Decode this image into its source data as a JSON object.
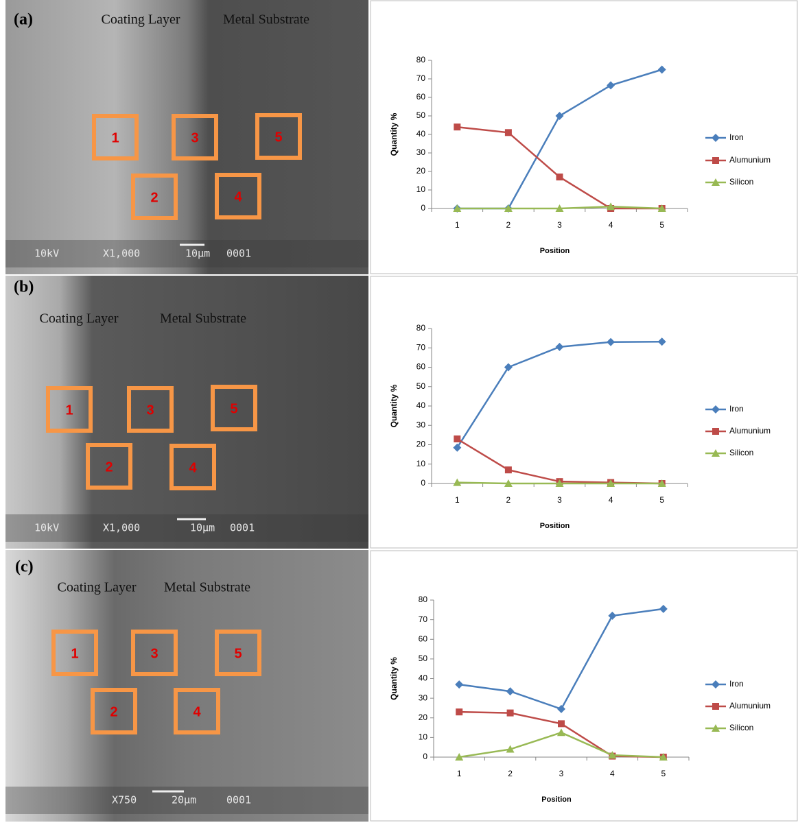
{
  "panels": [
    {
      "label": "(a)",
      "coating": "Coating Layer",
      "substrate": "Metal Substrate",
      "boxes": [
        "1",
        "2",
        "3",
        "4",
        "5"
      ],
      "info": [
        "10kV",
        "X1,000",
        "10μm",
        "0001"
      ]
    },
    {
      "label": "(b)",
      "coating": "Coating Layer",
      "substrate": "Metal Substrate",
      "boxes": [
        "1",
        "2",
        "3",
        "4",
        "5"
      ],
      "info": [
        "10kV",
        "X1,000",
        "10μm",
        "0001"
      ]
    },
    {
      "label": "(c)",
      "coating": "Coating Layer",
      "substrate": "Metal Substrate",
      "boxes": [
        "1",
        "2",
        "3",
        "4",
        "5"
      ],
      "info": [
        "X750",
        "20μm",
        "0001"
      ]
    }
  ],
  "chart_data": [
    {
      "type": "line",
      "y_label": "Quantity %",
      "x_label": "Position",
      "categories": [
        "1",
        "2",
        "3",
        "4",
        "5"
      ],
      "series": [
        {
          "name": "Iron",
          "color": "#4a7ebb",
          "marker": "diamond",
          "values": [
            0,
            0,
            50,
            66.5,
            75
          ]
        },
        {
          "name": "Alumunium",
          "color": "#be4b48",
          "marker": "square",
          "values": [
            44,
            41,
            17,
            0,
            0
          ]
        },
        {
          "name": "Silicon",
          "color": "#98b954",
          "marker": "triangle",
          "values": [
            0,
            0,
            0,
            1,
            0
          ]
        }
      ],
      "ylim": [
        0,
        80
      ],
      "yticks": [
        0,
        10,
        20,
        30,
        40,
        50,
        60,
        70,
        80
      ],
      "legend": "right"
    },
    {
      "type": "line",
      "y_label": "Quantity %",
      "x_label": "Position",
      "categories": [
        "1",
        "2",
        "3",
        "4",
        "5"
      ],
      "series": [
        {
          "name": "Iron",
          "color": "#4a7ebb",
          "marker": "diamond",
          "values": [
            18.5,
            60,
            70.5,
            73,
            73.2
          ]
        },
        {
          "name": "Alumunium",
          "color": "#be4b48",
          "marker": "square",
          "values": [
            23,
            7,
            1,
            0.5,
            0
          ]
        },
        {
          "name": "Silicon",
          "color": "#98b954",
          "marker": "triangle",
          "values": [
            0.5,
            0,
            0,
            0,
            0
          ]
        }
      ],
      "ylim": [
        0,
        80
      ],
      "yticks": [
        0,
        10,
        20,
        30,
        40,
        50,
        60,
        70,
        80
      ],
      "legend": "right"
    },
    {
      "type": "line",
      "y_label": "Quantity %",
      "x_label": "Position",
      "categories": [
        "1",
        "2",
        "3",
        "4",
        "5"
      ],
      "series": [
        {
          "name": "Iron",
          "color": "#4a7ebb",
          "marker": "diamond",
          "values": [
            37,
            33.5,
            24.5,
            72,
            75.5
          ]
        },
        {
          "name": "Alumunium",
          "color": "#be4b48",
          "marker": "square",
          "values": [
            23,
            22.5,
            17,
            0.5,
            0
          ]
        },
        {
          "name": "Silicon",
          "color": "#98b954",
          "marker": "triangle",
          "values": [
            0,
            4,
            12.5,
            1,
            0
          ]
        }
      ],
      "ylim": [
        0,
        80
      ],
      "yticks": [
        0,
        10,
        20,
        30,
        40,
        50,
        60,
        70,
        80
      ],
      "legend": "right"
    }
  ]
}
